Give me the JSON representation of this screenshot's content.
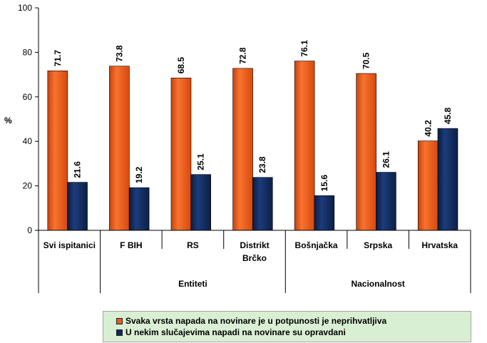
{
  "chart_data": {
    "type": "bar",
    "ylabel": "%",
    "ylim": [
      0,
      100
    ],
    "yticks": [
      0,
      20,
      40,
      60,
      80,
      100
    ],
    "categories": [
      [
        "Svi ispitanici"
      ],
      [
        "F BIH"
      ],
      [
        "RS"
      ],
      [
        "Distrikt",
        "Brčko"
      ],
      [
        "Bošnjačka"
      ],
      [
        "Srpska"
      ],
      [
        "Hrvatska"
      ]
    ],
    "groups": [
      {
        "label": "Entiteti",
        "from": 1,
        "to": 3
      },
      {
        "label": "Nacionalnost",
        "from": 4,
        "to": 6
      }
    ],
    "series": [
      {
        "name": "Svaka vrsta napada na novinare je u potpunosti je neprihvatljiva",
        "color": "#ee5a1c",
        "values": [
          71.7,
          73.8,
          68.5,
          72.8,
          76.1,
          70.5,
          40.2
        ]
      },
      {
        "name": "U nekim slučajevima napadi na novinare su opravdani",
        "color": "#10295a",
        "values": [
          21.6,
          19.2,
          25.1,
          23.8,
          15.6,
          26.1,
          45.8
        ]
      }
    ],
    "legend_position": "bottom",
    "grid": false
  }
}
